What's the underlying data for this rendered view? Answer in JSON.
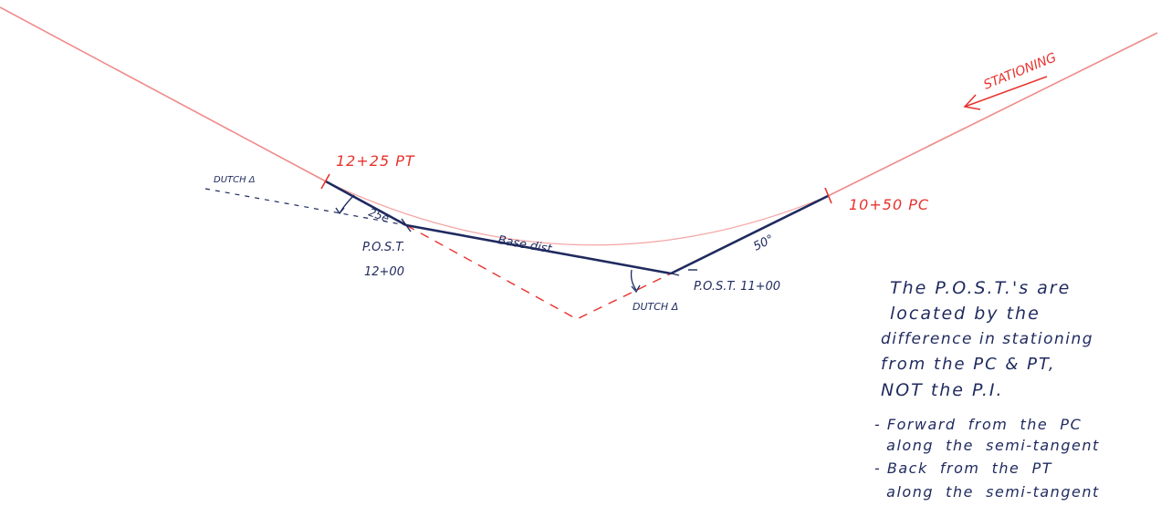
{
  "colors": {
    "red_line": "#f08a8a",
    "red_text": "#e8322d",
    "blue_ink": "#1f2a5e"
  },
  "labels": {
    "stationing": "STATIONING",
    "pt": "12+25 PT",
    "pc": "10+50 PC",
    "dutch_left": "DUTCH Δ",
    "dutch_right": "DUTCH Δ",
    "post_left_title": "P.O.S.T.",
    "post_left_station": "12+00",
    "post_right": "P.O.S.T.  11+00",
    "base_dist": "Base dist.",
    "angle_25": "25e",
    "angle_50": "50°"
  },
  "notes": {
    "lines": [
      "The  P.O.S.T.'s  are",
      "located  by the",
      "difference  in  stationing",
      "from  the  PC  &  PT,",
      "NOT  the  P.I."
    ],
    "bullets": [
      "- Forward  from  the  PC",
      "  along  the  semi-tangent",
      "- Back  from  the  PT",
      "  along  the  semi-tangent"
    ]
  }
}
